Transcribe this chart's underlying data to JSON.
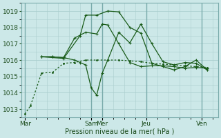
{
  "title": "",
  "xlabel": "Pression niveau de la mer( hPa )",
  "ylabel": "",
  "bg_color": "#cce8e8",
  "grid_color": "#aacece",
  "line_color": "#1a5c1a",
  "ylim": [
    1012.5,
    1019.5
  ],
  "yticks": [
    1013,
    1014,
    1015,
    1016,
    1017,
    1018,
    1019
  ],
  "x_day_labels": [
    "Mar",
    "Sam",
    "Mer",
    "Jeu",
    "Ven"
  ],
  "x_day_positions": [
    0,
    6,
    7,
    11,
    16
  ],
  "x_total_min": -0.3,
  "x_total_max": 17.5,
  "vline_color": "#7aabab",
  "series": [
    {
      "x": [
        0,
        0.5,
        1.5,
        2.5,
        3.5,
        4.5,
        5.5,
        6.5,
        7.5,
        8.5,
        9.5,
        10.5,
        11.5,
        12.5,
        13.5,
        14.5,
        15.5,
        16.5
      ],
      "y": [
        1012.7,
        1013.2,
        1015.2,
        1015.25,
        1015.8,
        1015.85,
        1016.0,
        1016.0,
        1016.0,
        1016.0,
        1015.95,
        1015.9,
        1015.8,
        1015.75,
        1015.7,
        1015.65,
        1015.6,
        1015.55
      ],
      "style": "dotted",
      "marker": "."
    },
    {
      "x": [
        1.5,
        2.5,
        3.5,
        4.5,
        5.0,
        5.5,
        6.0,
        6.5,
        7.0,
        7.5,
        8.5,
        9.5,
        10.5,
        11.5,
        12.5,
        13.5,
        14.5,
        15.5,
        16.5
      ],
      "y": [
        1016.2,
        1016.2,
        1016.15,
        1016.0,
        1015.85,
        1015.7,
        1014.3,
        1013.85,
        1015.2,
        1016.0,
        1017.7,
        1017.05,
        1018.2,
        1017.0,
        1015.9,
        1015.7,
        1015.85,
        1015.8,
        1015.4
      ],
      "style": "solid",
      "marker": "+"
    },
    {
      "x": [
        1.5,
        2.5,
        3.5,
        4.5,
        5.5,
        6.5,
        7.0,
        7.5,
        8.5,
        9.5,
        10.5,
        11.5,
        12.5,
        13.5,
        14.5,
        15.5,
        16.5
      ],
      "y": [
        1016.2,
        1016.2,
        1016.15,
        1017.35,
        1017.7,
        1017.6,
        1018.2,
        1018.15,
        1017.0,
        1015.85,
        1015.6,
        1015.65,
        1015.65,
        1015.6,
        1015.5,
        1015.55,
        1015.5
      ],
      "style": "solid",
      "marker": "+"
    },
    {
      "x": [
        1.5,
        3.5,
        5.0,
        5.5,
        6.5,
        7.5,
        8.5,
        9.5,
        10.5,
        11.5,
        12.5,
        13.5,
        14.5,
        15.5,
        16.5
      ],
      "y": [
        1016.2,
        1016.1,
        1017.5,
        1018.75,
        1018.75,
        1019.0,
        1018.95,
        1018.0,
        1017.65,
        1015.8,
        1015.6,
        1015.4,
        1015.6,
        1016.0,
        1015.4
      ],
      "style": "solid",
      "marker": "+"
    }
  ]
}
